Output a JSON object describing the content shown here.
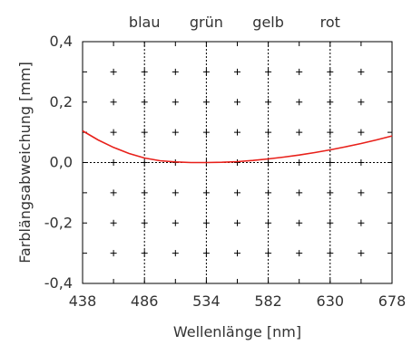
{
  "chart_data": {
    "type": "line",
    "title": "",
    "xlabel": "Wellenlänge [nm]",
    "ylabel": "Farblängsabweichung [mm]",
    "xlim": [
      438,
      678
    ],
    "ylim": [
      -0.4,
      0.4
    ],
    "xticks": [
      438,
      486,
      534,
      582,
      630,
      678
    ],
    "x_tick_labels": [
      "438",
      "486",
      "534",
      "582",
      "630",
      "678"
    ],
    "yticks": [
      0.4,
      0.2,
      0.0,
      -0.2,
      -0.4
    ],
    "y_tick_labels": [
      "0,4",
      "0,2",
      "0,0",
      "-0,2",
      "-0,4"
    ],
    "color_lines": [
      {
        "label": "blau",
        "x": 486
      },
      {
        "label": "grün",
        "x": 534
      },
      {
        "label": "gelb",
        "x": 582
      },
      {
        "label": "rot",
        "x": 630
      }
    ],
    "zero_line": 0.0,
    "grid": "crosses",
    "series": [
      {
        "color": "#e8201a",
        "x": [
          438,
          450,
          462,
          474,
          486,
          498,
          510,
          522,
          534,
          546,
          558,
          570,
          582,
          594,
          606,
          618,
          630,
          642,
          654,
          666,
          678
        ],
        "y": [
          0.105,
          0.075,
          0.05,
          0.03,
          0.015,
          0.006,
          0.002,
          0.0,
          0.0,
          0.001,
          0.003,
          0.007,
          0.012,
          0.018,
          0.025,
          0.033,
          0.042,
          0.052,
          0.063,
          0.075,
          0.088
        ]
      }
    ]
  }
}
